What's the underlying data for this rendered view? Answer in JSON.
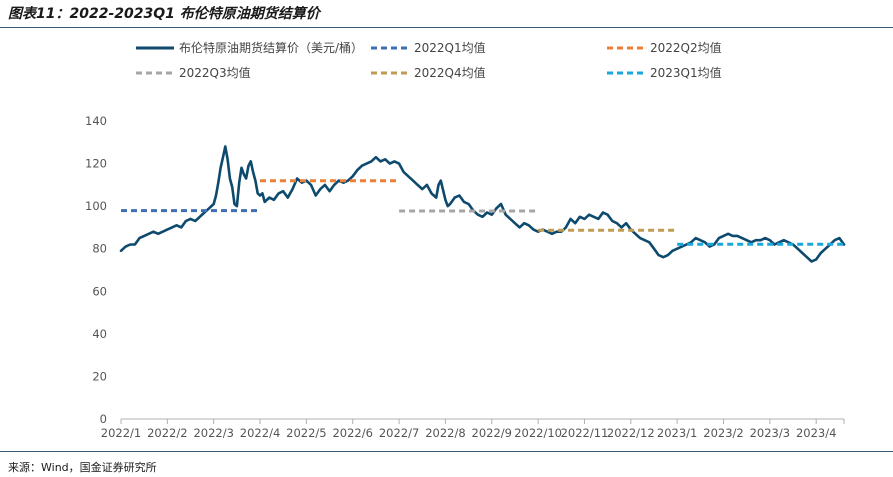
{
  "title": "图表11：2022-2023Q1 布伦特原油期货结算价",
  "source": "来源：Wind，国金证券研究所",
  "colors": {
    "brent": "#0d4a6e",
    "q1_2022": "#3d6fb2",
    "q2_2022": "#ec7e35",
    "q3_2022": "#a6a6a6",
    "q4_2022": "#bf9b54",
    "q1_2023": "#1ba7da"
  },
  "chart_data": {
    "type": "line",
    "title": "",
    "xlabel": "",
    "ylabel": "",
    "ylim": [
      0,
      140
    ],
    "yticks": [
      0,
      20,
      40,
      60,
      80,
      100,
      120,
      140
    ],
    "xlim": [
      0,
      15.6
    ],
    "xtick_labels": [
      "2022/1",
      "2022/2",
      "2022/3",
      "2022/4",
      "2022/5",
      "2022/6",
      "2022/7",
      "2022/8",
      "2022/9",
      "2022/10",
      "2022/11",
      "2022/12",
      "2023/1",
      "2023/2",
      "2023/3",
      "2023/4"
    ],
    "grid": false,
    "legend_position": "top",
    "series": [
      {
        "name": "布伦特原油期货结算价（美元/桶）",
        "style": "solid",
        "points": [
          [
            0.0,
            79
          ],
          [
            0.1,
            81
          ],
          [
            0.2,
            82
          ],
          [
            0.3,
            82
          ],
          [
            0.4,
            85
          ],
          [
            0.5,
            86
          ],
          [
            0.6,
            87
          ],
          [
            0.7,
            88
          ],
          [
            0.8,
            87
          ],
          [
            0.9,
            88
          ],
          [
            1.0,
            89
          ],
          [
            1.1,
            90
          ],
          [
            1.2,
            91
          ],
          [
            1.3,
            90
          ],
          [
            1.4,
            93
          ],
          [
            1.5,
            94
          ],
          [
            1.6,
            93
          ],
          [
            1.7,
            95
          ],
          [
            1.8,
            97
          ],
          [
            1.9,
            99
          ],
          [
            2.0,
            101
          ],
          [
            2.05,
            105
          ],
          [
            2.1,
            111
          ],
          [
            2.15,
            118
          ],
          [
            2.2,
            123
          ],
          [
            2.25,
            128
          ],
          [
            2.3,
            122
          ],
          [
            2.35,
            113
          ],
          [
            2.4,
            109
          ],
          [
            2.45,
            101
          ],
          [
            2.5,
            100
          ],
          [
            2.55,
            111
          ],
          [
            2.6,
            118
          ],
          [
            2.65,
            115
          ],
          [
            2.7,
            113
          ],
          [
            2.75,
            119
          ],
          [
            2.8,
            121
          ],
          [
            2.85,
            116
          ],
          [
            2.9,
            112
          ],
          [
            2.95,
            106
          ],
          [
            3.0,
            105
          ],
          [
            3.05,
            106
          ],
          [
            3.1,
            102
          ],
          [
            3.2,
            104
          ],
          [
            3.3,
            103
          ],
          [
            3.4,
            106
          ],
          [
            3.5,
            107
          ],
          [
            3.6,
            104
          ],
          [
            3.7,
            108
          ],
          [
            3.8,
            113
          ],
          [
            3.9,
            111
          ],
          [
            4.0,
            112
          ],
          [
            4.1,
            110
          ],
          [
            4.2,
            105
          ],
          [
            4.3,
            108
          ],
          [
            4.4,
            110
          ],
          [
            4.5,
            107
          ],
          [
            4.6,
            110
          ],
          [
            4.7,
            112
          ],
          [
            4.8,
            111
          ],
          [
            4.9,
            112
          ],
          [
            5.0,
            114
          ],
          [
            5.1,
            117
          ],
          [
            5.2,
            119
          ],
          [
            5.3,
            120
          ],
          [
            5.4,
            121
          ],
          [
            5.5,
            123
          ],
          [
            5.6,
            121
          ],
          [
            5.7,
            122
          ],
          [
            5.8,
            120
          ],
          [
            5.9,
            121
          ],
          [
            6.0,
            120
          ],
          [
            6.1,
            116
          ],
          [
            6.2,
            114
          ],
          [
            6.3,
            112
          ],
          [
            6.4,
            110
          ],
          [
            6.5,
            108
          ],
          [
            6.6,
            110
          ],
          [
            6.7,
            106
          ],
          [
            6.8,
            104
          ],
          [
            6.85,
            110
          ],
          [
            6.9,
            112
          ],
          [
            7.0,
            103
          ],
          [
            7.05,
            100
          ],
          [
            7.1,
            101
          ],
          [
            7.2,
            104
          ],
          [
            7.3,
            105
          ],
          [
            7.4,
            102
          ],
          [
            7.5,
            101
          ],
          [
            7.6,
            98
          ],
          [
            7.7,
            96
          ],
          [
            7.8,
            95
          ],
          [
            7.9,
            97
          ],
          [
            8.0,
            96
          ],
          [
            8.1,
            99
          ],
          [
            8.2,
            101
          ],
          [
            8.3,
            96
          ],
          [
            8.4,
            94
          ],
          [
            8.5,
            92
          ],
          [
            8.6,
            90
          ],
          [
            8.7,
            92
          ],
          [
            8.8,
            91
          ],
          [
            8.9,
            89
          ],
          [
            9.0,
            88
          ],
          [
            9.1,
            89
          ],
          [
            9.2,
            88
          ],
          [
            9.3,
            87
          ],
          [
            9.4,
            88
          ],
          [
            9.5,
            88
          ],
          [
            9.6,
            90
          ],
          [
            9.7,
            94
          ],
          [
            9.8,
            92
          ],
          [
            9.9,
            95
          ],
          [
            10.0,
            94
          ],
          [
            10.1,
            96
          ],
          [
            10.2,
            95
          ],
          [
            10.3,
            94
          ],
          [
            10.4,
            97
          ],
          [
            10.5,
            96
          ],
          [
            10.6,
            93
          ],
          [
            10.7,
            92
          ],
          [
            10.8,
            90
          ],
          [
            10.9,
            92
          ],
          [
            11.0,
            89
          ],
          [
            11.1,
            87
          ],
          [
            11.2,
            85
          ],
          [
            11.3,
            84
          ],
          [
            11.4,
            83
          ],
          [
            11.5,
            80
          ],
          [
            11.6,
            77
          ],
          [
            11.7,
            76
          ],
          [
            11.8,
            77
          ],
          [
            11.9,
            79
          ],
          [
            12.0,
            80
          ],
          [
            12.1,
            81
          ],
          [
            12.2,
            82
          ],
          [
            12.3,
            83
          ],
          [
            12.4,
            85
          ],
          [
            12.5,
            84
          ],
          [
            12.6,
            83
          ],
          [
            12.7,
            81
          ],
          [
            12.8,
            82
          ],
          [
            12.9,
            85
          ],
          [
            13.0,
            86
          ],
          [
            13.1,
            87
          ],
          [
            13.2,
            86
          ],
          [
            13.3,
            86
          ],
          [
            13.4,
            85
          ],
          [
            13.5,
            84
          ],
          [
            13.6,
            83
          ],
          [
            13.7,
            84
          ],
          [
            13.8,
            84
          ],
          [
            13.9,
            85
          ],
          [
            14.0,
            84
          ],
          [
            14.1,
            82
          ],
          [
            14.2,
            83
          ],
          [
            14.3,
            84
          ],
          [
            14.4,
            83
          ],
          [
            14.5,
            82
          ],
          [
            14.6,
            80
          ],
          [
            14.7,
            78
          ],
          [
            14.8,
            76
          ],
          [
            14.9,
            74
          ],
          [
            15.0,
            75
          ],
          [
            15.1,
            78
          ],
          [
            15.2,
            80
          ],
          [
            15.3,
            82
          ],
          [
            15.4,
            84
          ],
          [
            15.5,
            85
          ],
          [
            15.6,
            82
          ]
        ]
      },
      {
        "name": "2022Q1均值",
        "style": "dashed",
        "points": [
          [
            0.0,
            97.9
          ],
          [
            3.0,
            97.9
          ]
        ]
      },
      {
        "name": "2022Q2均值",
        "style": "dashed",
        "points": [
          [
            3.0,
            111.9
          ],
          [
            6.0,
            111.9
          ]
        ]
      },
      {
        "name": "2022Q3均值",
        "style": "dashed",
        "points": [
          [
            6.0,
            97.7
          ],
          [
            9.0,
            97.7
          ]
        ]
      },
      {
        "name": "2022Q4均值",
        "style": "dashed",
        "points": [
          [
            9.0,
            88.7
          ],
          [
            12.0,
            88.7
          ]
        ]
      },
      {
        "name": "2023Q1均值",
        "style": "dashed",
        "points": [
          [
            12.0,
            82.1
          ],
          [
            15.6,
            82.1
          ]
        ]
      }
    ]
  }
}
